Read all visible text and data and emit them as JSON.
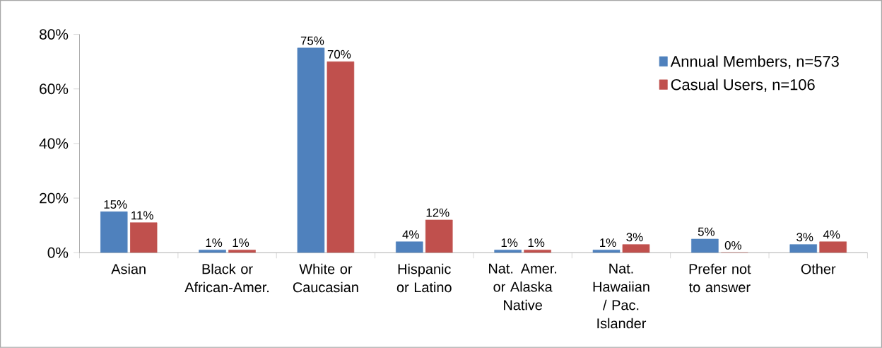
{
  "chart_data": {
    "type": "bar",
    "categories": [
      "Asian",
      "Black or African-Amer.",
      "White or Caucasian",
      "Hispanic or Latino",
      "Nat. Amer. or Alaska Native",
      "Nat. Hawaiian / Pac. Islander",
      "Prefer not to answer",
      "Other"
    ],
    "series": [
      {
        "name": "Annual Members, n=573",
        "color": "#4f81bd",
        "values": [
          15,
          1,
          75,
          4,
          1,
          1,
          5,
          3
        ],
        "value_labels": [
          "15%",
          "1%",
          "75%",
          "4%",
          "1%",
          "1%",
          "5%",
          "3%"
        ]
      },
      {
        "name": "Casual Users, n=106",
        "color": "#c0504d",
        "values": [
          11,
          1,
          70,
          12,
          1,
          3,
          0,
          4
        ],
        "value_labels": [
          "11%",
          "1%",
          "70%",
          "12%",
          "1%",
          "3%",
          "0%",
          "4%"
        ]
      }
    ],
    "ylim": [
      0,
      80
    ],
    "yticks": [
      {
        "value": 0,
        "label": "0%"
      },
      {
        "value": 20,
        "label": "20%"
      },
      {
        "value": 40,
        "label": "40%"
      },
      {
        "value": 60,
        "label": "60%"
      },
      {
        "value": 80,
        "label": "80%"
      }
    ],
    "legend": "top right",
    "grid": false
  }
}
